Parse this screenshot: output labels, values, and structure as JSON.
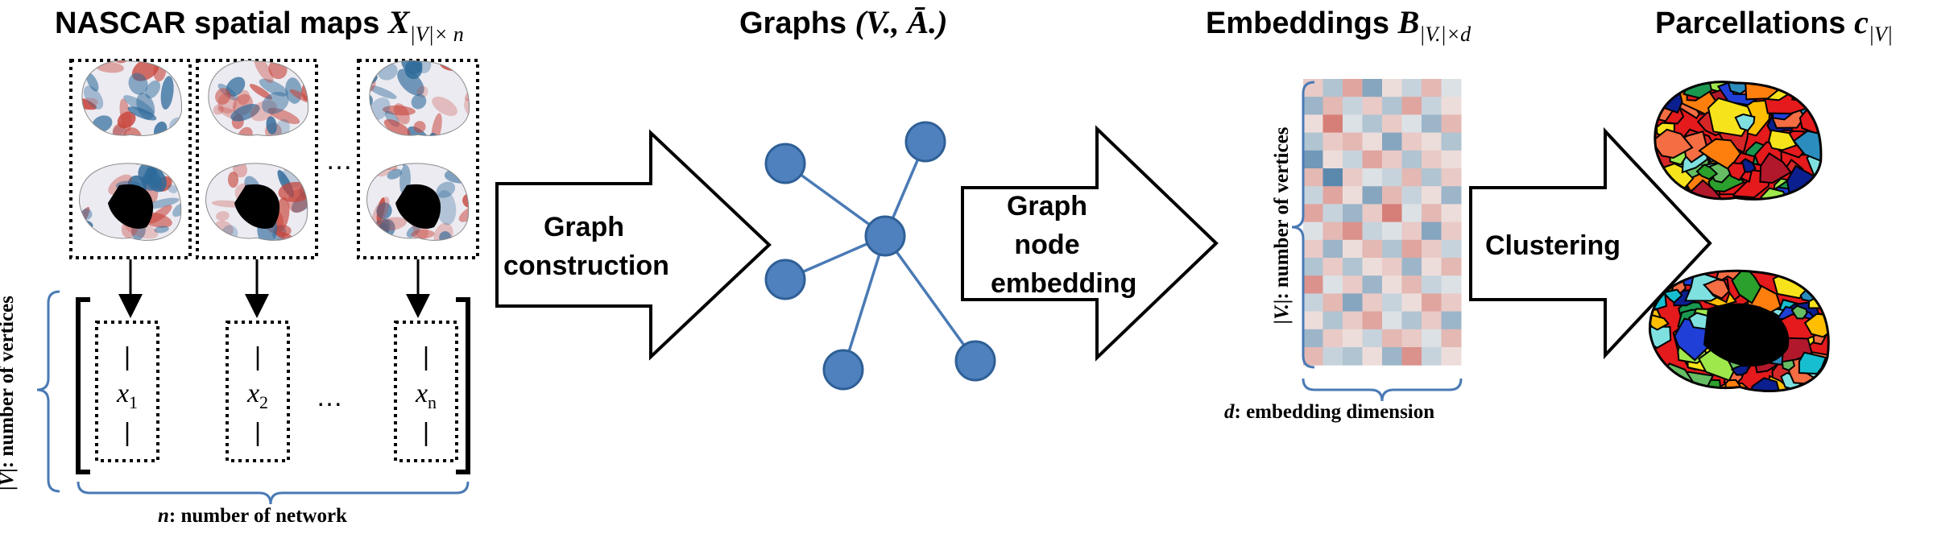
{
  "titles": {
    "maps": {
      "text": "NASCAR spatial maps ",
      "math": "X",
      "sub": "|V|× n"
    },
    "graphs": {
      "text": "Graphs ",
      "math": "(V., Ā.)"
    },
    "embeddings": {
      "text": "Embeddings ",
      "math": "B",
      "sub": "|V.|×d"
    },
    "parcellations": {
      "text": "Parcellations ",
      "math": "c",
      "sub": "|V|"
    }
  },
  "arrows": {
    "graph_construction": [
      "Graph",
      "construction"
    ],
    "node_embedding": [
      "Graph",
      "node",
      "embedding"
    ],
    "clustering": [
      "Clustering"
    ]
  },
  "vectors": {
    "x1": {
      "base": "x",
      "sub": "1"
    },
    "x2": {
      "base": "x",
      "sub": "2"
    },
    "xn": {
      "base": "x",
      "sub": "n"
    },
    "ellipsis": "…",
    "map_ellipsis": "…"
  },
  "annotations": {
    "vertices_left": {
      "var": "|V|",
      "text": ": number of vertices"
    },
    "network": {
      "var": "n",
      "text": ": number of network"
    },
    "vertices_matrix": {
      "var": "|V.|",
      "text": ": number of vertices"
    },
    "embedding_dim": {
      "var": "d",
      "text": ": embedding dimension"
    }
  },
  "colors": {
    "node_fill": "#4e81bd",
    "node_stroke": "#2f5f96",
    "edge": "#4a7ab5",
    "brace": "#4a7ab5",
    "heat_neg": "#2e6a9a",
    "heat_pos": "#c8453b",
    "heat_mid": "#f2f0ee"
  },
  "graph": {
    "node_count": 6,
    "edges": [
      [
        0,
        2
      ],
      [
        1,
        2
      ],
      [
        2,
        3
      ],
      [
        2,
        4
      ],
      [
        2,
        5
      ]
    ]
  },
  "heatmap": {
    "rows": 16,
    "cols": 8,
    "values": [
      [
        0.2,
        -0.3,
        0.4,
        -0.5,
        0.1,
        -0.2,
        0.3,
        -0.1
      ],
      [
        -0.4,
        0.3,
        -0.2,
        0.2,
        -0.3,
        0.4,
        -0.2,
        0.1
      ],
      [
        0.1,
        0.6,
        -0.1,
        -0.3,
        0.2,
        -0.1,
        -0.4,
        0.3
      ],
      [
        -0.3,
        0.2,
        0.3,
        0.1,
        -0.5,
        0.2,
        0.1,
        -0.3
      ],
      [
        -0.6,
        0.1,
        -0.2,
        0.4,
        0.2,
        -0.3,
        0.2,
        0.1
      ],
      [
        0.3,
        -0.7,
        0.2,
        -0.1,
        -0.2,
        0.3,
        -0.3,
        0.2
      ],
      [
        -0.2,
        0.4,
        0.1,
        -0.5,
        0.3,
        -0.2,
        0.1,
        -0.4
      ],
      [
        0.4,
        -0.2,
        -0.4,
        0.2,
        0.6,
        -0.1,
        0.3,
        0.1
      ],
      [
        -0.1,
        0.3,
        0.5,
        -0.2,
        -0.1,
        0.2,
        -0.5,
        0.2
      ],
      [
        0.2,
        -0.4,
        0.1,
        0.3,
        -0.3,
        0.4,
        0.2,
        -0.2
      ],
      [
        -0.3,
        0.2,
        -0.3,
        0.1,
        0.2,
        -0.4,
        0.1,
        0.3
      ],
      [
        0.5,
        -0.1,
        0.2,
        -0.4,
        0.1,
        0.3,
        -0.2,
        -0.1
      ],
      [
        -0.2,
        0.3,
        -0.5,
        0.2,
        -0.2,
        0.1,
        0.4,
        0.2
      ],
      [
        0.1,
        -0.3,
        0.2,
        0.4,
        -0.1,
        -0.3,
        0.2,
        -0.4
      ],
      [
        -0.4,
        0.2,
        0.1,
        -0.2,
        0.3,
        0.2,
        -0.1,
        0.3
      ],
      [
        0.3,
        -0.2,
        -0.3,
        0.1,
        -0.4,
        0.5,
        -0.2,
        0.1
      ]
    ]
  },
  "parcel_palette": [
    "#e41a1c",
    "#1f3fd6",
    "#f7e31b",
    "#2ca02c",
    "#ff7f0e",
    "#17becf",
    "#9ee84b",
    "#b2182b",
    "#ffbf00",
    "#2b8cbe",
    "#7fe0e0",
    "#d62728",
    "#1a9850",
    "#f46d43",
    "#66bd63",
    "#0b1f8f"
  ]
}
